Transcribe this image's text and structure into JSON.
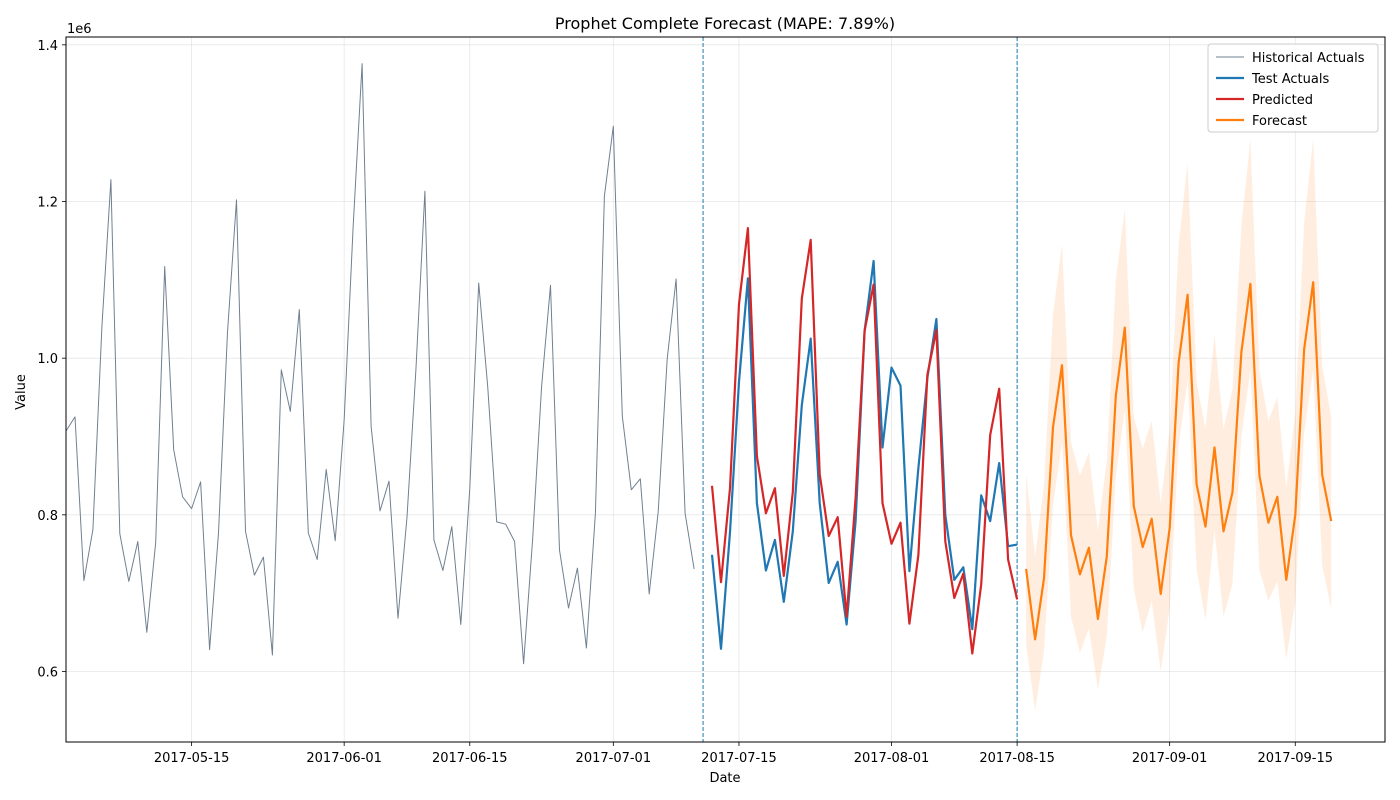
{
  "chart_data": {
    "type": "line",
    "title": "Prophet Complete Forecast (MAPE: 7.89%)",
    "xlabel": "Date",
    "ylabel": "Value",
    "y_offset_label": "1e6",
    "x_range": [
      "2017-05-01",
      "2017-09-25"
    ],
    "ylim": [
      0.51,
      1.41
    ],
    "y_ticks": [
      0.6,
      0.8,
      1.0,
      1.2,
      1.4
    ],
    "y_tick_labels": [
      "0.6",
      "0.8",
      "1.0",
      "1.2",
      "1.4"
    ],
    "x_ticks": [
      "2017-05-15",
      "2017-06-01",
      "2017-06-15",
      "2017-07-01",
      "2017-07-15",
      "2017-08-01",
      "2017-08-15",
      "2017-09-01",
      "2017-09-15"
    ],
    "x_tick_labels": [
      "2017-05-15",
      "2017-06-01",
      "2017-06-15",
      "2017-07-01",
      "2017-07-15",
      "2017-08-01",
      "2017-08-15",
      "2017-09-01",
      "2017-09-15"
    ],
    "grid": true,
    "legend_position": "top-right",
    "vlines": [
      "2017-07-11",
      "2017-08-15"
    ],
    "series": [
      {
        "name": "Historical Actuals",
        "color": "#708090",
        "start": "2017-05-01",
        "values": [
          0.907,
          0.925,
          0.716,
          0.781,
          1.04,
          1.228,
          0.776,
          0.715,
          0.766,
          0.65,
          0.765,
          1.117,
          0.883,
          0.823,
          0.808,
          0.842,
          0.628,
          0.777,
          1.033,
          1.202,
          0.779,
          0.723,
          0.746,
          0.621,
          0.985,
          0.932,
          1.062,
          0.777,
          0.743,
          0.858,
          0.767,
          0.922,
          1.167,
          1.376,
          0.913,
          0.805,
          0.843,
          0.668,
          0.797,
          0.985,
          1.213,
          0.768,
          0.729,
          0.785,
          0.66,
          0.834,
          1.096,
          0.964,
          0.791,
          0.788,
          0.766,
          0.61,
          0.768,
          0.964,
          1.093,
          0.755,
          0.681,
          0.732,
          0.63,
          0.802,
          1.207,
          1.296,
          0.926,
          0.832,
          0.846,
          0.699,
          0.804,
          0.999,
          1.101,
          0.802,
          0.731
        ]
      },
      {
        "name": "Test Actuals",
        "color": "#1f77b4",
        "start": "2017-07-12",
        "values": [
          0.749,
          0.629,
          0.778,
          0.97,
          1.102,
          0.815,
          0.729,
          0.768,
          0.689,
          0.779,
          0.94,
          1.025,
          0.815,
          0.713,
          0.74,
          0.66,
          0.792,
          1.035,
          1.124,
          0.886,
          0.988,
          0.965,
          0.728,
          0.86,
          0.975,
          1.05,
          0.8,
          0.717,
          0.733,
          0.654,
          0.825,
          0.792,
          0.866,
          0.76,
          0.762
        ]
      },
      {
        "name": "Predicted",
        "color": "#d62728",
        "start": "2017-07-12",
        "values": [
          0.837,
          0.714,
          0.834,
          1.069,
          1.166,
          0.875,
          0.802,
          0.834,
          0.722,
          0.829,
          1.076,
          1.151,
          0.852,
          0.773,
          0.797,
          0.67,
          0.822,
          1.035,
          1.094,
          0.815,
          0.763,
          0.79,
          0.661,
          0.749,
          0.979,
          1.036,
          0.766,
          0.694,
          0.725,
          0.623,
          0.711,
          0.902,
          0.961,
          0.743,
          0.692
        ]
      },
      {
        "name": "Forecast",
        "color": "#ff7f0e",
        "start": "2017-08-16",
        "values": [
          0.731,
          0.641,
          0.719,
          0.912,
          0.991,
          0.774,
          0.724,
          0.758,
          0.667,
          0.747,
          0.952,
          1.039,
          0.811,
          0.759,
          0.795,
          0.699,
          0.783,
          0.994,
          1.081,
          0.839,
          0.785,
          0.886,
          0.779,
          0.829,
          1.008,
          1.095,
          0.85,
          0.79,
          0.823,
          0.717,
          0.8,
          1.012,
          1.097,
          0.851,
          0.792
        ],
        "lower": [
          0.635,
          0.55,
          0.626,
          0.812,
          0.893,
          0.669,
          0.624,
          0.655,
          0.577,
          0.644,
          0.848,
          0.934,
          0.705,
          0.65,
          0.69,
          0.6,
          0.68,
          0.888,
          0.972,
          0.73,
          0.666,
          0.78,
          0.67,
          0.712,
          0.9,
          0.985,
          0.73,
          0.69,
          0.715,
          0.615,
          0.69,
          0.905,
          0.985,
          0.735,
          0.68
        ],
        "upper": [
          0.853,
          0.747,
          0.838,
          1.056,
          1.145,
          0.893,
          0.85,
          0.88,
          0.78,
          0.87,
          1.1,
          1.19,
          0.925,
          0.885,
          0.92,
          0.815,
          0.91,
          1.145,
          1.25,
          0.97,
          0.91,
          1.03,
          0.91,
          0.96,
          1.17,
          1.28,
          0.985,
          0.92,
          0.95,
          0.835,
          0.93,
          1.175,
          1.28,
          0.99,
          0.925
        ]
      }
    ]
  }
}
